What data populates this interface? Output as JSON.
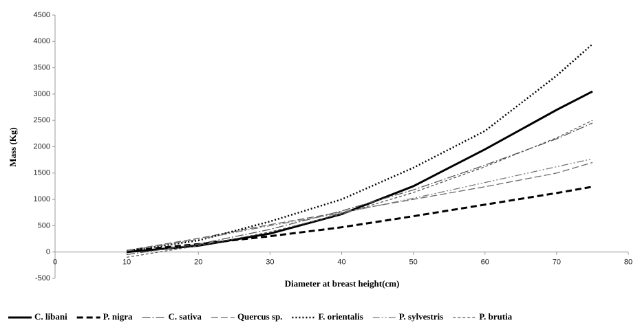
{
  "chart_data": {
    "type": "line",
    "x_label": "Diameter at breast height(cm)",
    "y_label": "Mass (Kg)",
    "x": [
      10,
      20,
      30,
      40,
      50,
      60,
      70,
      75
    ],
    "xlim": [
      0,
      80
    ],
    "xticks": [
      0,
      10,
      20,
      30,
      40,
      50,
      60,
      70,
      80
    ],
    "ylim": [
      -500,
      4500
    ],
    "yticks": [
      -500,
      0,
      500,
      1000,
      1500,
      2000,
      2500,
      3000,
      3500,
      4000,
      4500
    ],
    "series": [
      {
        "name": "C. libani",
        "color": "#000000",
        "width": 3,
        "dash": "none",
        "values": [
          0,
          120,
          350,
          720,
          1250,
          1950,
          2700,
          3050
        ]
      },
      {
        "name": "P. nigra",
        "color": "#000000",
        "width": 3,
        "dash": "9,5",
        "values": [
          20,
          150,
          300,
          470,
          680,
          900,
          1120,
          1240
        ]
      },
      {
        "name": "C. sativa",
        "color": "#555555",
        "width": 1.3,
        "dash": "12,3,2,3",
        "values": [
          -50,
          150,
          430,
          780,
          1180,
          1650,
          2150,
          2450
        ]
      },
      {
        "name": "Quercus sp.",
        "color": "#666666",
        "width": 1.3,
        "dash": "10,4",
        "values": [
          30,
          260,
          520,
          760,
          1000,
          1240,
          1500,
          1700
        ]
      },
      {
        "name": "F. orientalis",
        "color": "#000000",
        "width": 2.5,
        "dash": "2,3",
        "values": [
          20,
          220,
          580,
          1000,
          1600,
          2300,
          3350,
          3950
        ]
      },
      {
        "name": "P. sylvestris",
        "color": "#777777",
        "width": 1.3,
        "dash": "10,3,2,3,2,3",
        "values": [
          20,
          240,
          500,
          740,
          1020,
          1320,
          1620,
          1770
        ]
      },
      {
        "name": "P. brutia",
        "color": "#555555",
        "width": 1.3,
        "dash": "4,3",
        "values": [
          -100,
          120,
          380,
          720,
          1130,
          1620,
          2170,
          2500
        ]
      }
    ]
  }
}
